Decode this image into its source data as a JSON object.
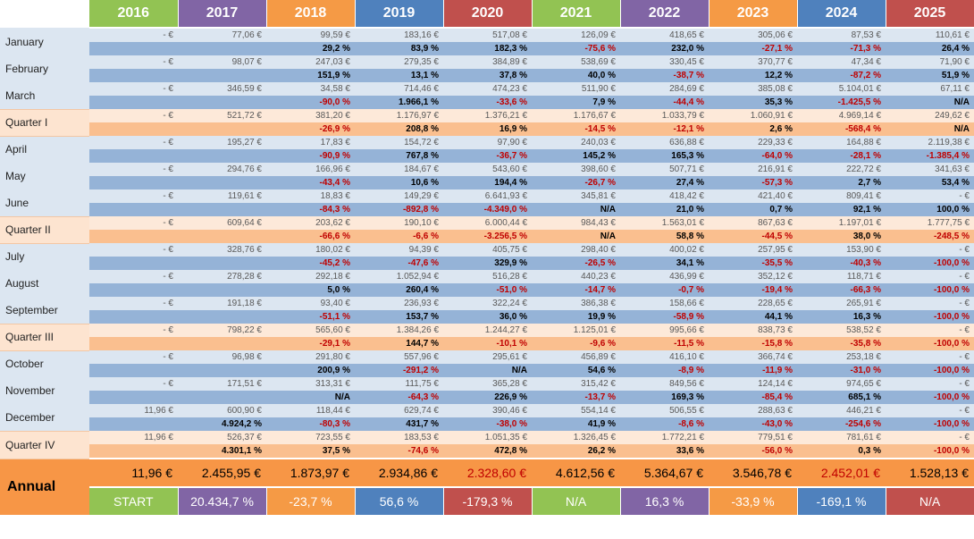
{
  "years": [
    "2016",
    "2017",
    "2018",
    "2019",
    "2020",
    "2021",
    "2022",
    "2023",
    "2024",
    "2025"
  ],
  "year_colors": [
    "green",
    "purple",
    "orange",
    "blue",
    "red",
    "green",
    "purple",
    "orange",
    "blue",
    "red"
  ],
  "rows": [
    {
      "type": "month",
      "label": "January",
      "values": [
        "-   €",
        "77,06 €",
        "99,59 €",
        "183,16 €",
        "517,08 €",
        "126,09 €",
        "418,65 €",
        "305,06 €",
        "87,53 €",
        "110,61 €"
      ],
      "pcts": [
        "",
        "",
        "29,2 %",
        "83,9 %",
        "182,3 %",
        "-75,6 %",
        "232,0 %",
        "-27,1 %",
        "-71,3 %",
        "26,4 %"
      ]
    },
    {
      "type": "month",
      "label": "February",
      "values": [
        "-   €",
        "98,07 €",
        "247,03 €",
        "279,35 €",
        "384,89 €",
        "538,69 €",
        "330,45 €",
        "370,77 €",
        "47,34 €",
        "71,90 €"
      ],
      "pcts": [
        "",
        "",
        "151,9 %",
        "13,1 %",
        "37,8 %",
        "40,0 %",
        "-38,7 %",
        "12,2 %",
        "-87,2 %",
        "51,9 %"
      ]
    },
    {
      "type": "month",
      "label": "March",
      "values": [
        "-   €",
        "346,59 €",
        "34,58 €",
        "714,46 €",
        "474,23 €",
        "511,90 €",
        "284,69 €",
        "385,08 €",
        "5.104,01 €",
        "67,11 €"
      ],
      "pcts": [
        "",
        "",
        "-90,0 %",
        "1.966,1 %",
        "-33,6 %",
        "7,9 %",
        "-44,4 %",
        "35,3 %",
        "-1.425,5 %",
        "N/A"
      ]
    },
    {
      "type": "quarter",
      "label": "Quarter I",
      "values": [
        "-   €",
        "521,72 €",
        "381,20 €",
        "1.176,97 €",
        "1.376,21 €",
        "1.176,67 €",
        "1.033,79 €",
        "1.060,91 €",
        "4.969,14 €",
        "249,62 €"
      ],
      "pcts": [
        "",
        "",
        "-26,9 %",
        "208,8 %",
        "16,9 %",
        "-14,5 %",
        "-12,1 %",
        "2,6 %",
        "-568,4 %",
        "N/A"
      ]
    },
    {
      "type": "month",
      "label": "April",
      "values": [
        "-   €",
        "195,27 €",
        "17,83 €",
        "154,72 €",
        "97,90 €",
        "240,03 €",
        "636,88 €",
        "229,33 €",
        "164,88 €",
        "2.119,38 €"
      ],
      "pcts": [
        "",
        "",
        "-90,9 %",
        "767,8 %",
        "-36,7 %",
        "145,2 %",
        "165,3 %",
        "-64,0 %",
        "-28,1 %",
        "-1.385,4 %"
      ]
    },
    {
      "type": "month",
      "label": "May",
      "values": [
        "-   €",
        "294,76 €",
        "166,96 €",
        "184,67 €",
        "543,60 €",
        "398,60 €",
        "507,71 €",
        "216,91 €",
        "222,72 €",
        "341,63 €"
      ],
      "pcts": [
        "",
        "",
        "-43,4 %",
        "10,6 %",
        "194,4 %",
        "-26,7 %",
        "27,4 %",
        "-57,3 %",
        "2,7 %",
        "53,4 %"
      ]
    },
    {
      "type": "month",
      "label": "June",
      "values": [
        "-   €",
        "119,61 €",
        "18,83 €",
        "149,29 €",
        "6.641,93 €",
        "345,81 €",
        "418,42 €",
        "421,40 €",
        "809,41 €",
        "-   €"
      ],
      "pcts": [
        "",
        "",
        "-84,3 %",
        "-892,8 %",
        "-4.349,0 %",
        "N/A",
        "21,0 %",
        "0,7 %",
        "92,1 %",
        "100,0 %"
      ]
    },
    {
      "type": "quarter",
      "label": "Quarter II",
      "values": [
        "-   €",
        "609,64 €",
        "203,62 €",
        "190,10 €",
        "6.000,44 €",
        "984,43 €",
        "1.563,01 €",
        "867,63 €",
        "1.197,01 €",
        "1.777,75 €"
      ],
      "pcts": [
        "",
        "",
        "-66,6 %",
        "-6,6 %",
        "-3.256,5 %",
        "N/A",
        "58,8 %",
        "-44,5 %",
        "38,0 %",
        "-248,5 %"
      ]
    },
    {
      "type": "month",
      "label": "July",
      "values": [
        "-   €",
        "328,76 €",
        "180,02 €",
        "94,39 €",
        "405,75 €",
        "298,40 €",
        "400,02 €",
        "257,95 €",
        "153,90 €",
        "-   €"
      ],
      "pcts": [
        "",
        "",
        "-45,2 %",
        "-47,6 %",
        "329,9 %",
        "-26,5 %",
        "34,1 %",
        "-35,5 %",
        "-40,3 %",
        "-100,0 %"
      ]
    },
    {
      "type": "month",
      "label": "August",
      "values": [
        "-   €",
        "278,28 €",
        "292,18 €",
        "1.052,94 €",
        "516,28 €",
        "440,23 €",
        "436,99 €",
        "352,12 €",
        "118,71 €",
        "-   €"
      ],
      "pcts": [
        "",
        "",
        "5,0 %",
        "260,4 %",
        "-51,0 %",
        "-14,7 %",
        "-0,7 %",
        "-19,4 %",
        "-66,3 %",
        "-100,0 %"
      ]
    },
    {
      "type": "month",
      "label": "September",
      "values": [
        "-   €",
        "191,18 €",
        "93,40 €",
        "236,93 €",
        "322,24 €",
        "386,38 €",
        "158,66 €",
        "228,65 €",
        "265,91 €",
        "-   €"
      ],
      "pcts": [
        "",
        "",
        "-51,1 %",
        "153,7 %",
        "36,0 %",
        "19,9 %",
        "-58,9 %",
        "44,1 %",
        "16,3 %",
        "-100,0 %"
      ]
    },
    {
      "type": "quarter",
      "label": "Quarter III",
      "values": [
        "-   €",
        "798,22 €",
        "565,60 €",
        "1.384,26 €",
        "1.244,27 €",
        "1.125,01 €",
        "995,66 €",
        "838,73 €",
        "538,52 €",
        "-   €"
      ],
      "pcts": [
        "",
        "",
        "-29,1 %",
        "144,7 %",
        "-10,1 %",
        "-9,6 %",
        "-11,5 %",
        "-15,8 %",
        "-35,8 %",
        "-100,0 %"
      ]
    },
    {
      "type": "month",
      "label": "October",
      "values": [
        "-   €",
        "96,98 €",
        "291,80 €",
        "557,96 €",
        "295,61 €",
        "456,89 €",
        "416,10 €",
        "366,74 €",
        "253,18 €",
        "-   €"
      ],
      "pcts": [
        "",
        "",
        "200,9 %",
        "-291,2 %",
        "N/A",
        "54,6 %",
        "-8,9 %",
        "-11,9 %",
        "-31,0 %",
        "-100,0 %"
      ]
    },
    {
      "type": "month",
      "label": "November",
      "values": [
        "-   €",
        "171,51 €",
        "313,31 €",
        "111,75 €",
        "365,28 €",
        "315,42 €",
        "849,56 €",
        "124,14 €",
        "974,65 €",
        "-   €"
      ],
      "pcts": [
        "",
        "",
        "N/A",
        "-64,3 %",
        "226,9 %",
        "-13,7 %",
        "169,3 %",
        "-85,4 %",
        "685,1 %",
        "-100,0 %"
      ]
    },
    {
      "type": "month",
      "label": "December",
      "values": [
        "11,96 €",
        "600,90 €",
        "118,44 €",
        "629,74 €",
        "390,46 €",
        "554,14 €",
        "506,55 €",
        "288,63 €",
        "446,21 €",
        "-   €"
      ],
      "pcts": [
        "",
        "4.924,2 %",
        "-80,3 %",
        "431,7 %",
        "-38,0 %",
        "41,9 %",
        "-8,6 %",
        "-43,0 %",
        "-254,6 %",
        "-100,0 %"
      ]
    },
    {
      "type": "quarter",
      "label": "Quarter IV",
      "values": [
        "11,96 €",
        "526,37 €",
        "723,55 €",
        "183,53 €",
        "1.051,35 €",
        "1.326,45 €",
        "1.772,21 €",
        "779,51 €",
        "781,61 €",
        "-   €"
      ],
      "pcts": [
        "",
        "4.301,1 %",
        "37,5 %",
        "-74,6 %",
        "472,8 %",
        "26,2 %",
        "33,6 %",
        "-56,0 %",
        "0,3 %",
        "-100,0 %"
      ]
    }
  ],
  "annual": {
    "label": "Annual",
    "values": [
      "11,96 €",
      "2.455,95 €",
      "1.873,97 €",
      "2.934,86 €",
      "2.328,60 €",
      "4.612,56 €",
      "5.364,67 €",
      "3.546,78 €",
      "2.452,01 €",
      "1.528,13 €"
    ],
    "negative": [
      false,
      false,
      false,
      false,
      true,
      false,
      false,
      false,
      true,
      false
    ],
    "pcts": [
      "START",
      "20.434,7 %",
      "-23,7 %",
      "56,6 %",
      "-179,3 %",
      "N/A",
      "16,3 %",
      "-33,9 %",
      "-169,1 %",
      "N/A"
    ]
  },
  "colors": {
    "green": "#92c353",
    "purple": "#8165a5",
    "orange": "#f59a45",
    "blue": "#4f81bd",
    "red": "#c0504d",
    "negative_text": "#c00000"
  }
}
